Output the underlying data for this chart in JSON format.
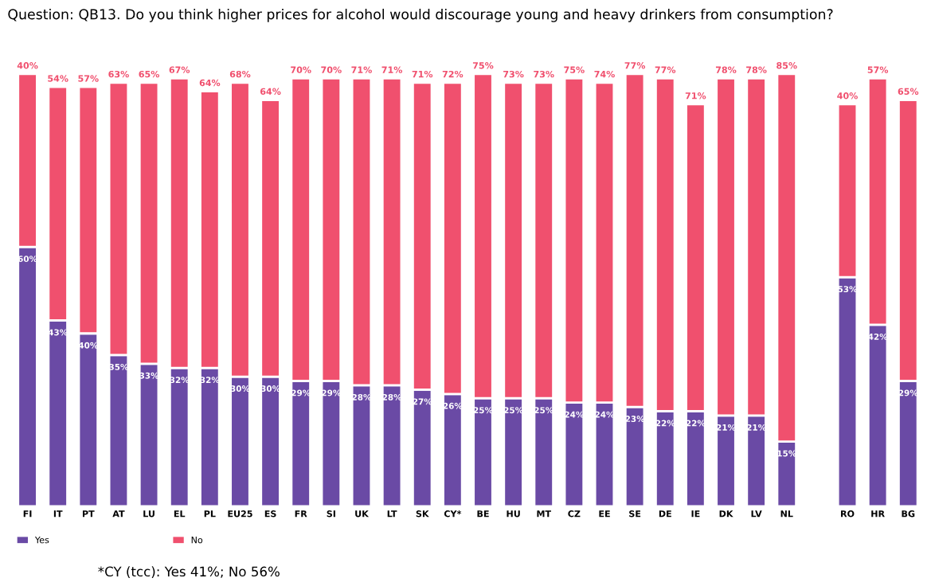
{
  "chart_data": {
    "type": "bar",
    "stacked": true,
    "title": "Question: QB13. Do you think higher prices for alcohol would discourage young and heavy drinkers from consumption?",
    "categories": [
      "FI",
      "IT",
      "PT",
      "AT",
      "LU",
      "EL",
      "PL",
      "EU25",
      "ES",
      "FR",
      "SI",
      "UK",
      "LT",
      "SK",
      "CY*",
      "BE",
      "HU",
      "MT",
      "CZ",
      "EE",
      "SE",
      "DE",
      "IE",
      "DK",
      "LV",
      "NL",
      null,
      "RO",
      "HR",
      "BG"
    ],
    "series": [
      {
        "name": "Yes",
        "color": "#6a4aa5",
        "values": [
          60,
          43,
          40,
          35,
          33,
          32,
          32,
          30,
          30,
          29,
          29,
          28,
          28,
          27,
          26,
          25,
          25,
          25,
          24,
          24,
          23,
          22,
          22,
          21,
          21,
          15,
          null,
          53,
          42,
          29
        ],
        "value_labels": [
          "60%",
          "43%",
          "40%",
          "35%",
          "33%",
          "32%",
          "32%",
          "30%",
          "30%",
          "29%",
          "29%",
          "28%",
          "28%",
          "27%",
          "26%",
          "25%",
          "25%",
          "25%",
          "24%",
          "24%",
          "23%",
          "22%",
          "22%",
          "21%",
          "21%",
          "15%",
          null,
          "53%",
          "42%",
          "29%"
        ]
      },
      {
        "name": "No",
        "color": "#f0506e",
        "values": [
          40,
          54,
          57,
          63,
          65,
          67,
          64,
          68,
          64,
          70,
          70,
          71,
          71,
          71,
          72,
          75,
          73,
          73,
          75,
          74,
          77,
          77,
          71,
          78,
          78,
          85,
          null,
          40,
          57,
          65
        ],
        "value_labels": [
          "40%",
          "54%",
          "57%",
          "63%",
          "65%",
          "67%",
          "64%",
          "68%",
          "64%",
          "70%",
          "70%",
          "71%",
          "71%",
          "71%",
          "72%",
          "75%",
          "73%",
          "73%",
          "75%",
          "74%",
          "77%",
          "77%",
          "71%",
          "78%",
          "78%",
          "85%",
          null,
          "40%",
          "57%",
          "65%"
        ]
      }
    ],
    "legend": "bottom left",
    "grid": false,
    "tick_labels": "x",
    "annotations": [
      "*CY (tcc): Yes 41%; No 56%"
    ]
  }
}
